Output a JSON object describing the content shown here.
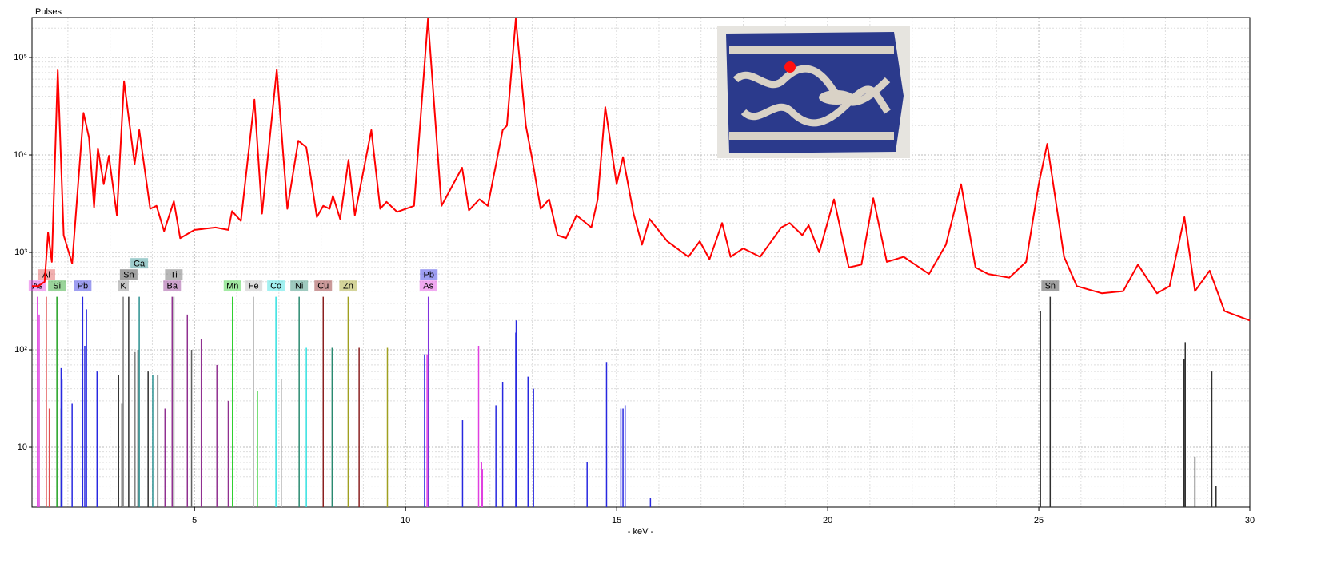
{
  "chart_data": {
    "type": "line",
    "y_label": "Pulses",
    "x_label": "- keV -",
    "log_y": true,
    "grid": true,
    "xlim": [
      1.15,
      30
    ],
    "ylim": [
      2.43,
      257000
    ],
    "xticks": [
      5,
      10,
      15,
      20,
      25,
      30
    ],
    "x_minor_ticks": [
      2,
      3,
      4,
      6,
      7,
      8,
      9,
      11,
      12,
      13,
      14,
      16,
      17,
      18,
      19,
      21,
      22,
      23,
      24,
      26,
      27,
      28,
      29
    ],
    "yticks": [
      10,
      {
        "value": 100,
        "label": "10²"
      },
      {
        "value": 1000,
        "label": "10³"
      },
      {
        "value": 10000,
        "label": "10⁴"
      },
      {
        "value": 100000,
        "label": "10⁵"
      }
    ],
    "y_minor_ticks": [
      3,
      4,
      5,
      6,
      7,
      8,
      9,
      20,
      30,
      40,
      50,
      60,
      70,
      80,
      90,
      200,
      300,
      400,
      500,
      600,
      700,
      800,
      900,
      2000,
      3000,
      4000,
      5000,
      6000,
      7000,
      8000,
      9000,
      20000,
      30000,
      40000,
      50000,
      60000,
      70000,
      80000,
      90000,
      200000
    ],
    "series": [
      {
        "color": "#ff0000",
        "x": [
          1.15,
          1.3,
          1.45,
          1.53,
          1.62,
          1.76,
          1.9,
          2.1,
          2.37,
          2.5,
          2.62,
          2.71,
          2.85,
          2.97,
          3.16,
          3.33,
          3.58,
          3.69,
          3.95,
          4.1,
          4.28,
          4.51,
          4.66,
          5.0,
          5.5,
          5.8,
          5.89,
          6.1,
          6.42,
          6.6,
          6.95,
          7.2,
          7.46,
          7.65,
          7.9,
          8.05,
          8.2,
          8.28,
          8.45,
          8.65,
          8.8,
          9.19,
          9.4,
          9.55,
          9.8,
          10.2,
          10.53,
          10.85,
          11.34,
          11.5,
          11.75,
          11.95,
          12.3,
          12.4,
          12.61,
          12.85,
          13.0,
          13.2,
          13.4,
          13.6,
          13.8,
          14.05,
          14.4,
          14.55,
          14.73,
          15.0,
          15.15,
          15.4,
          15.6,
          15.78,
          16.2,
          16.7,
          16.97,
          17.2,
          17.5,
          17.7,
          18.0,
          18.4,
          18.9,
          19.1,
          19.4,
          19.55,
          19.8,
          20.15,
          20.5,
          20.8,
          21.08,
          21.4,
          21.8,
          22.4,
          22.8,
          23.16,
          23.5,
          23.8,
          24.3,
          24.7,
          25.0,
          25.2,
          25.6,
          25.9,
          26.5,
          27.0,
          27.35,
          27.8,
          28.1,
          28.45,
          28.7,
          29.05,
          29.4,
          30.0
        ],
        "values": [
          450,
          450,
          500,
          1600,
          800,
          74000,
          1500,
          770,
          27000,
          15000,
          2900,
          11700,
          5000,
          9800,
          2400,
          57000,
          8100,
          18000,
          2800,
          3000,
          1650,
          3350,
          1400,
          1700,
          1800,
          1700,
          2650,
          2100,
          37000,
          2500,
          75000,
          2800,
          14000,
          12000,
          2300,
          3000,
          2800,
          3800,
          2200,
          8900,
          2400,
          18000,
          2800,
          3300,
          2600,
          3000,
          250000,
          3000,
          7400,
          2700,
          3500,
          3000,
          18000,
          20000,
          250000,
          20000,
          9000,
          2800,
          3500,
          1500,
          1400,
          2400,
          1800,
          3500,
          31000,
          5000,
          9500,
          2500,
          1200,
          2200,
          1300,
          900,
          1300,
          850,
          2000,
          900,
          1100,
          900,
          1800,
          2000,
          1500,
          1900,
          1000,
          3500,
          700,
          750,
          3600,
          800,
          900,
          600,
          1200,
          5000,
          700,
          600,
          550,
          800,
          5000,
          13000,
          900,
          450,
          380,
          400,
          750,
          380,
          450,
          2300,
          400,
          650,
          250,
          200
        ]
      }
    ],
    "elements": [
      {
        "name": "As",
        "color": "#e040e0",
        "x": [
          1.28,
          1.32,
          10.51,
          10.54,
          11.73,
          11.8,
          11.82
        ],
        "values": [
          350,
          230,
          90,
          350,
          110,
          7,
          6
        ]
      },
      {
        "name": "Al",
        "color": "#e05050",
        "x": [
          1.49,
          1.56
        ],
        "values": [
          350,
          25
        ]
      },
      {
        "name": "Si",
        "color": "#20a020",
        "x": [
          1.74,
          1.84
        ],
        "values": [
          350,
          25
        ]
      },
      {
        "name": "Pb",
        "color": "#2828e0",
        "x": [
          1.84,
          1.86,
          2.1,
          2.35,
          2.4,
          2.44,
          2.69,
          10.45,
          10.55,
          11.35,
          12.14,
          12.3,
          12.61,
          12.62,
          12.9,
          13.03,
          14.3,
          14.76,
          15.1,
          15.15,
          15.2,
          15.8
        ],
        "values": [
          65,
          50,
          28,
          350,
          110,
          260,
          60,
          90,
          350,
          19,
          27,
          47,
          150,
          200,
          53,
          40,
          7,
          75,
          25,
          25,
          27,
          3
        ]
      },
      {
        "name": "Sn",
        "color": "#303030",
        "x": [
          3.2,
          3.28,
          3.44,
          3.66,
          3.9,
          4.13,
          25.04,
          25.27,
          28.44,
          28.47,
          28.7,
          29.1,
          29.2
        ],
        "values": [
          55,
          28,
          350,
          100,
          60,
          55,
          250,
          350,
          80,
          120,
          8,
          60,
          4
        ]
      },
      {
        "name": "K",
        "color": "#808080",
        "x": [
          3.31,
          3.59
        ],
        "values": [
          350,
          95
        ]
      },
      {
        "name": "Ca",
        "color": "#2a9090",
        "x": [
          3.69,
          4.01
        ],
        "values": [
          350,
          55
        ]
      },
      {
        "name": "Ti",
        "color": "#606060",
        "x": [
          4.51,
          4.93
        ],
        "values": [
          350,
          100
        ]
      },
      {
        "name": "Ba",
        "color": "#903090",
        "x": [
          4.3,
          4.47,
          4.83,
          5.16,
          5.53,
          5.8
        ],
        "values": [
          25,
          350,
          230,
          130,
          70,
          30
        ]
      },
      {
        "name": "Mn",
        "color": "#30d030",
        "x": [
          5.9,
          6.49
        ],
        "values": [
          350,
          38
        ]
      },
      {
        "name": "Fe",
        "color": "#b8b8b8",
        "x": [
          6.4,
          7.06
        ],
        "values": [
          350,
          50
        ]
      },
      {
        "name": "Co",
        "color": "#30e0e0",
        "x": [
          6.93,
          7.65
        ],
        "values": [
          350,
          105
        ]
      },
      {
        "name": "Ni",
        "color": "#2a8a70",
        "x": [
          7.48,
          8.26
        ],
        "values": [
          350,
          105
        ]
      },
      {
        "name": "Cu",
        "color": "#8b2020",
        "x": [
          8.05,
          8.9
        ],
        "values": [
          350,
          105
        ]
      },
      {
        "name": "Zn",
        "color": "#a0a020",
        "x": [
          8.64,
          9.57
        ],
        "values": [
          350,
          105
        ]
      }
    ]
  }
}
